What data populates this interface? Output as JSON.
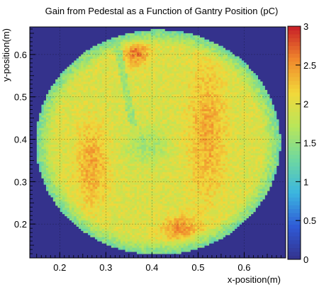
{
  "chart_data": {
    "type": "heatmap",
    "title": "Gain from Pedestal as a Function of Gantry Position (pC)",
    "xlabel": "x-position(m)",
    "ylabel": "y-position(m)",
    "xlim": [
      0.135,
      0.69
    ],
    "ylim": [
      0.12,
      0.665
    ],
    "x_ticks": [
      "0.2",
      "0.3",
      "0.4",
      "0.5",
      "0.6"
    ],
    "y_ticks": [
      "0.2",
      "0.3",
      "0.4",
      "0.5",
      "0.6"
    ],
    "colorbar": {
      "range": [
        0,
        3
      ],
      "ticks": [
        "0",
        "0.5",
        "1",
        "1.5",
        "2",
        "2.5",
        "3"
      ],
      "palette": [
        "#34328c",
        "#2f5ad6",
        "#3bb6e0",
        "#6ed8a0",
        "#b9e65a",
        "#f2d83a",
        "#f0882c",
        "#c81e28"
      ]
    },
    "disk": {
      "center_xy_m": [
        0.413,
        0.393
      ],
      "radius_m": 0.265,
      "background_value": 0
    },
    "features": [
      {
        "name": "outer-ring",
        "value": 1.3
      },
      {
        "name": "center-spot",
        "value": 1.6
      },
      {
        "name": "left-hot-arc",
        "value": 2.4
      },
      {
        "name": "right-hot-arc",
        "value": 2.45
      },
      {
        "name": "top-hot-spot",
        "value": 2.6
      },
      {
        "name": "bottom-hot-spot",
        "value": 2.5
      },
      {
        "name": "gap-line",
        "value": 1.0
      }
    ],
    "grid": true
  }
}
